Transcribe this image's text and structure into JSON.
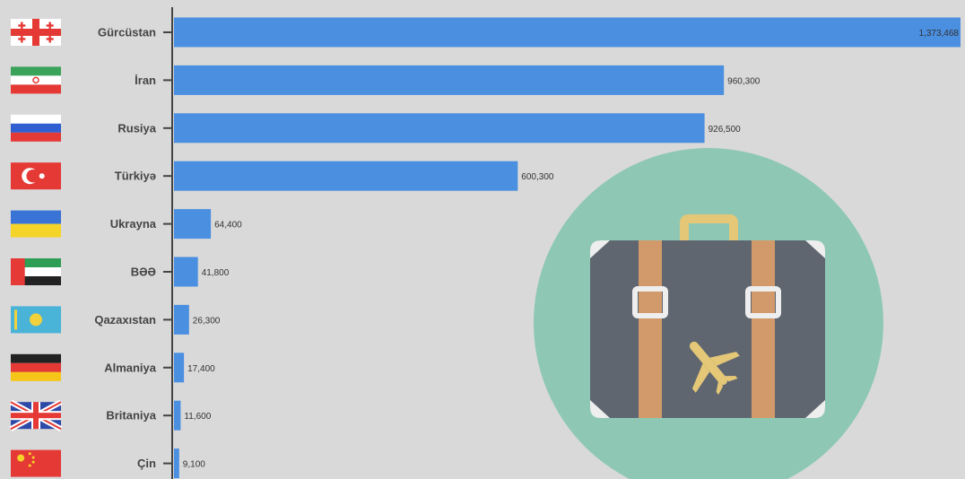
{
  "chart_data": {
    "type": "bar",
    "orientation": "horizontal",
    "categories": [
      "Gürcüstan",
      "İran",
      "Rusiya",
      "Türkiyə",
      "Ukrayna",
      "BƏƏ",
      "Qazaxıstan",
      "Almaniya",
      "Britaniya",
      "Çin"
    ],
    "values": [
      1373468,
      960300,
      926500,
      600300,
      64400,
      41800,
      26300,
      17400,
      11600,
      9100
    ],
    "value_labels": [
      "1,373,468",
      "960,300",
      "926,500",
      "600,300",
      "64,400",
      "41,800",
      "26,300",
      "17,400",
      "11,600",
      "9,100"
    ],
    "flags": [
      "georgia-flag",
      "iran-flag",
      "russia-flag",
      "turkey-flag",
      "ukraine-flag",
      "uae-flag",
      "kazakhstan-flag",
      "germany-flag",
      "uk-flag",
      "china-flag"
    ],
    "xlim": [
      0,
      1373468
    ],
    "title": "",
    "xlabel": "",
    "ylabel": "",
    "grid": false,
    "legend": "none"
  },
  "colors": {
    "background": "#d9d9d9",
    "bar": "#4a8fe0",
    "circle": "#8ec8b5",
    "suitcase_body": "#5f6670",
    "suitcase_strap": "#d29a6a",
    "suitcase_handle": "#e4c777",
    "plane": "#e4c777"
  },
  "illustration": {
    "icon": "suitcase-airplane-icon"
  }
}
